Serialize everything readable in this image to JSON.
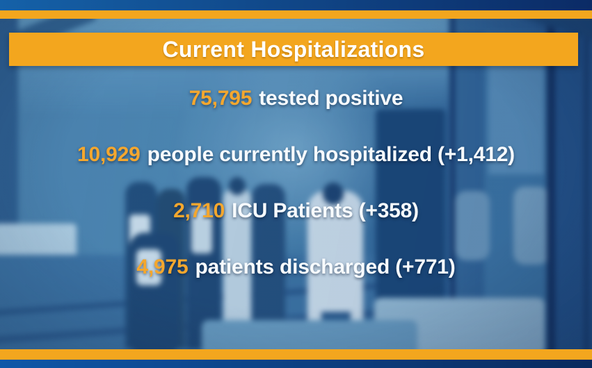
{
  "banner": {
    "title": "Current Hospitalizations"
  },
  "stats": [
    {
      "value": "75,795",
      "label": "tested positive"
    },
    {
      "value": "10,929",
      "label": "people currently hospitalized (+1,412)"
    },
    {
      "value": "2,710",
      "label": "ICU Patients (+358)"
    },
    {
      "value": "4,975",
      "label": "patients discharged (+771)"
    }
  ],
  "colors": {
    "accent-gold": "#F3A61E",
    "number-gold": "#F4A72E",
    "text-white": "#F7FBFE",
    "bar-blue-left": "#1561A8",
    "bar-blue-right": "#0B2B66",
    "bottom-bar-blue-left": "#0F57A8",
    "bottom-bar-blue-right": "#0A2A5E"
  }
}
